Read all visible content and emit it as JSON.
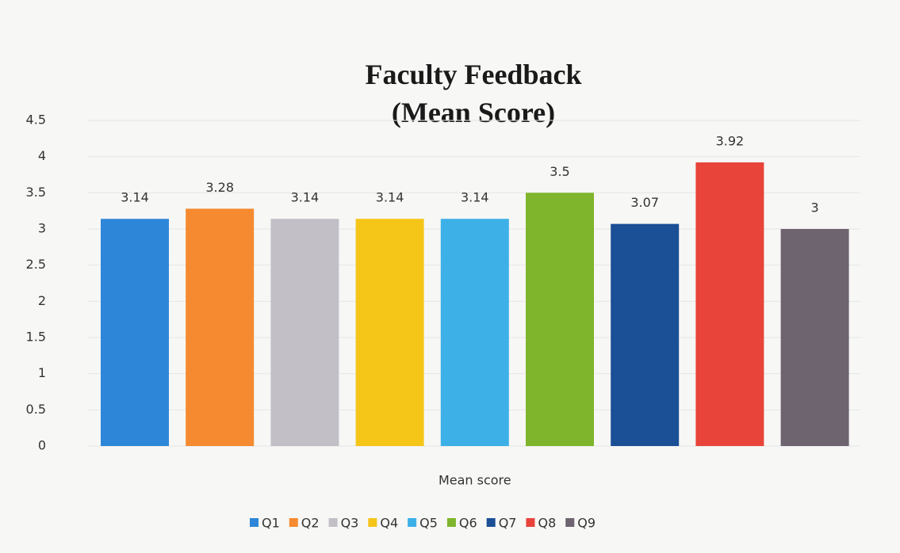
{
  "chart_data": {
    "type": "bar",
    "title": "Faculty Feedback (Mean Score)",
    "categories": [
      "Mean score"
    ],
    "series": [
      {
        "name": "Q1",
        "color": "#2e86d8",
        "values": [
          3.14
        ]
      },
      {
        "name": "Q2",
        "color": "#f58a30",
        "values": [
          3.28
        ]
      },
      {
        "name": "Q3",
        "color": "#c3bfc7",
        "values": [
          3.14
        ]
      },
      {
        "name": "Q4",
        "color": "#f5c518",
        "values": [
          3.14
        ]
      },
      {
        "name": "Q5",
        "color": "#3db0e8",
        "values": [
          3.14
        ]
      },
      {
        "name": "Q6",
        "color": "#7fb52c",
        "values": [
          3.5
        ]
      },
      {
        "name": "Q7",
        "color": "#1b4f96",
        "values": [
          3.07
        ]
      },
      {
        "name": "Q8",
        "color": "#e8443a",
        "values": [
          3.92
        ]
      },
      {
        "name": "Q9",
        "color": "#6e6470",
        "values": [
          3
        ]
      }
    ],
    "ylim": [
      0,
      4.5
    ],
    "yticks": [
      0,
      0.5,
      1,
      1.5,
      2,
      2.5,
      3,
      3.5,
      4,
      4.5
    ],
    "grid": true,
    "legend": "bottom"
  }
}
